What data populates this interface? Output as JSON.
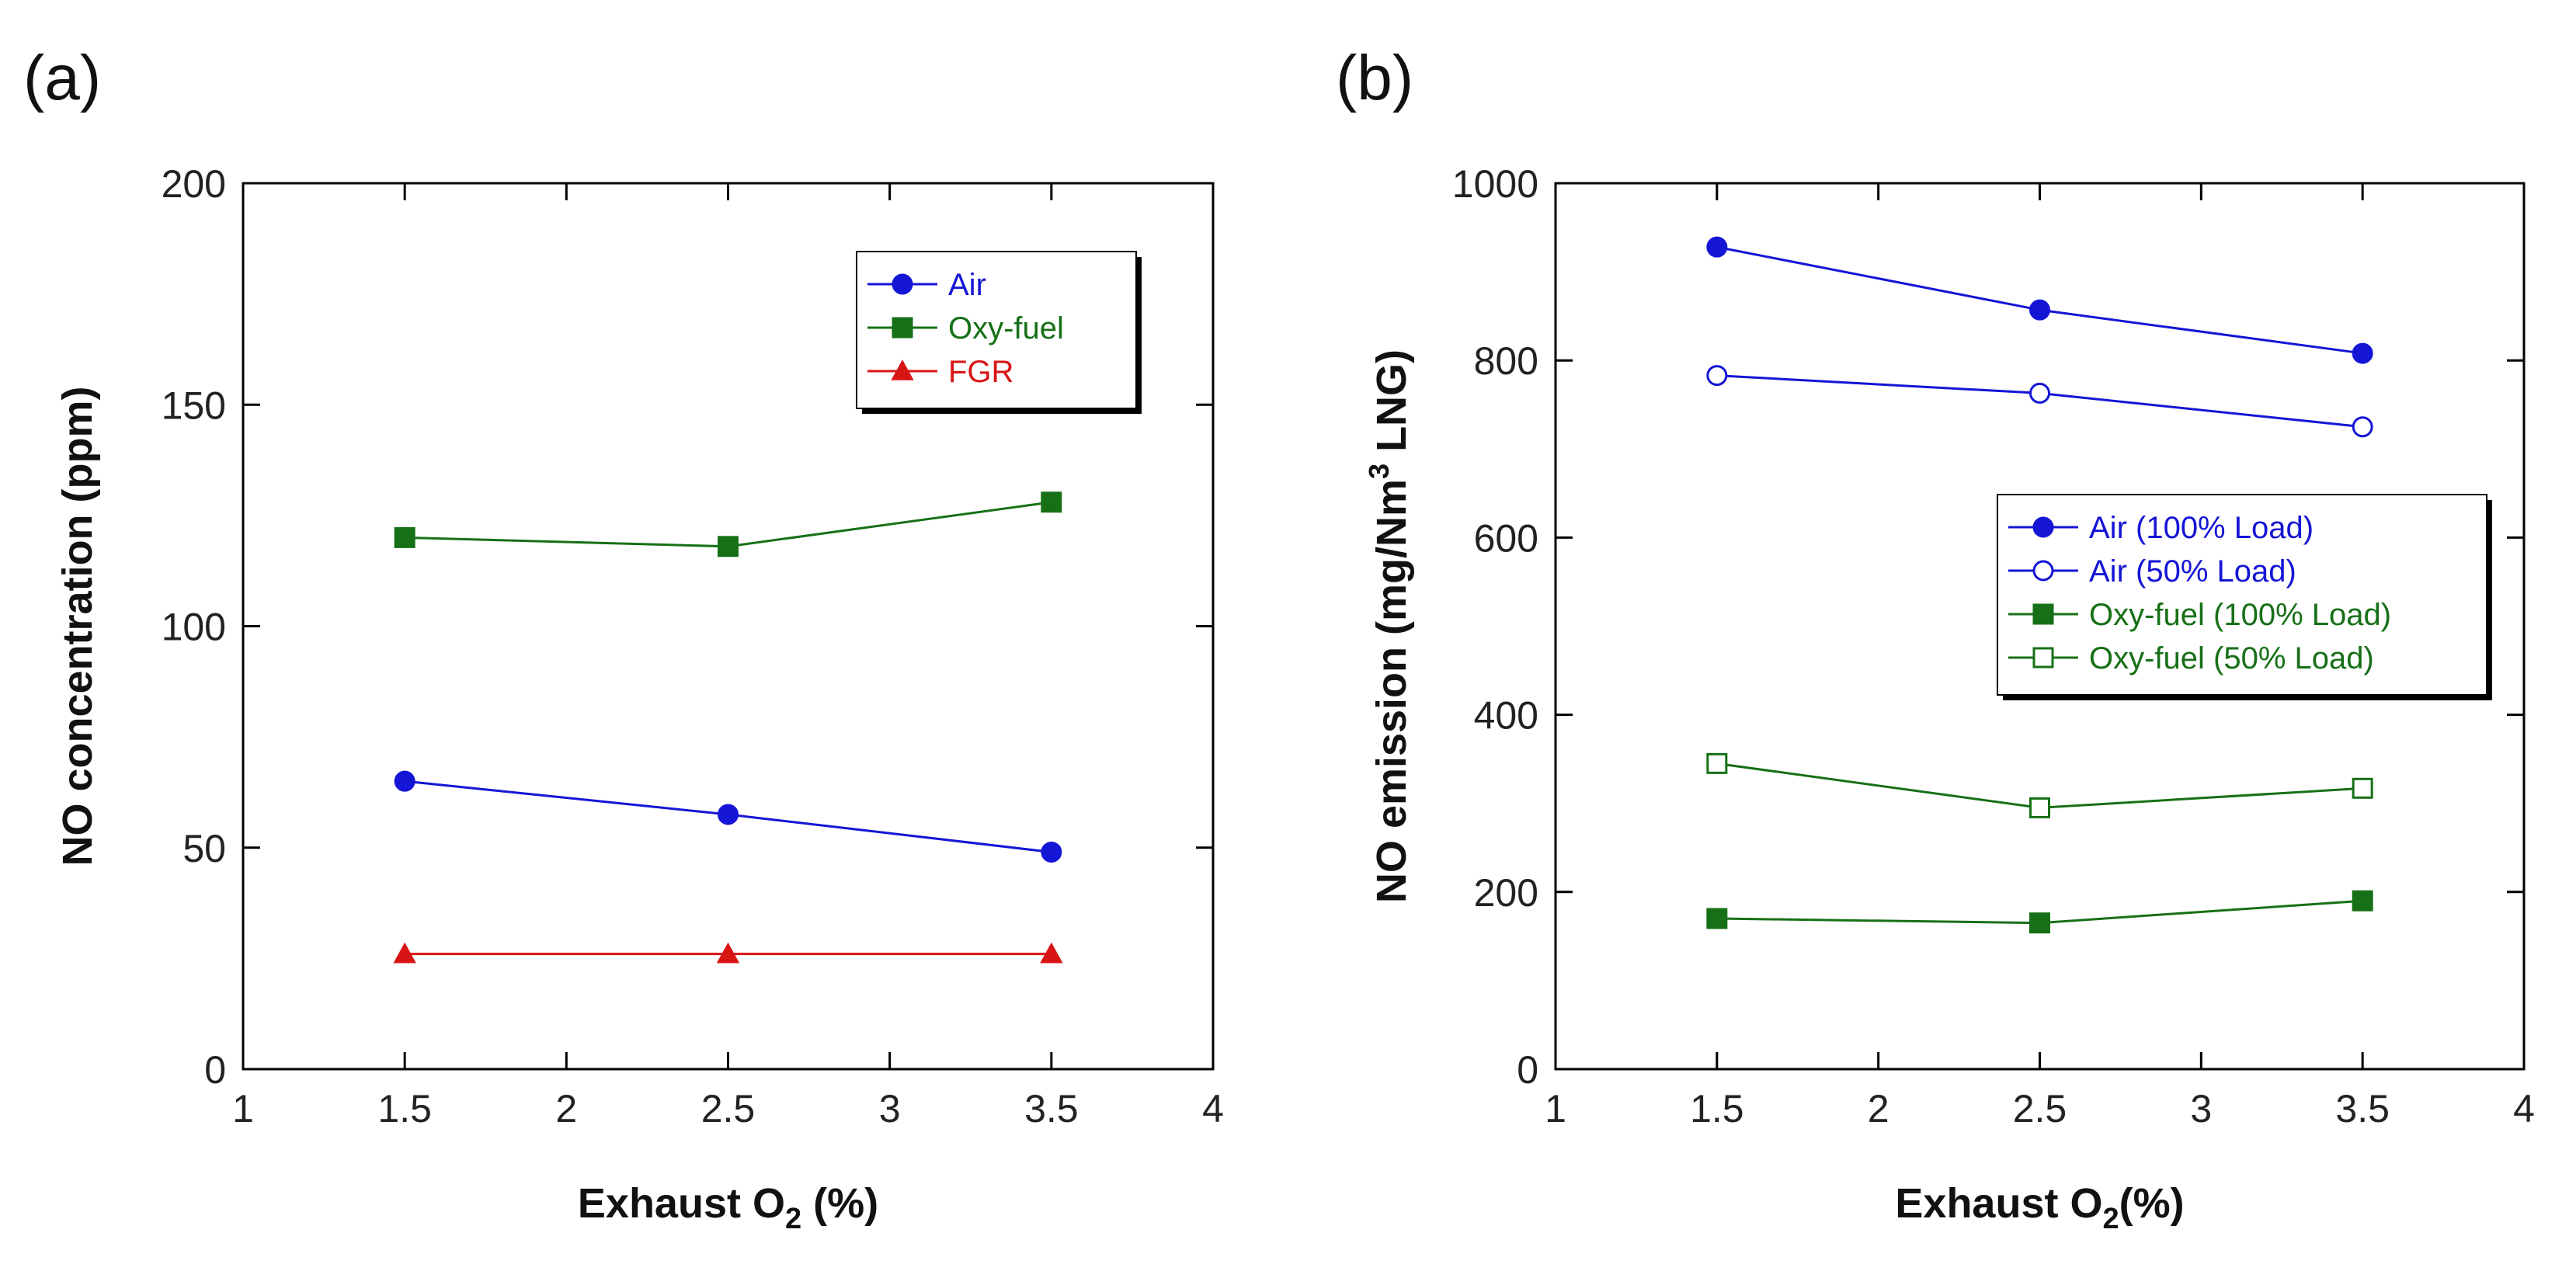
{
  "colors": {
    "air": "#1515d6",
    "oxy": "#177017",
    "fgr": "#d81515",
    "axis": "#000000"
  },
  "chart_data": [
    {
      "type": "line",
      "panel_label": "(a)",
      "xlabel": "Exhaust O",
      "xlabel_sub": "2",
      "xlabel_suffix": " (%)",
      "ylabel": "NO concentration (ppm)",
      "xlim": [
        1,
        4
      ],
      "ylim": [
        0,
        200
      ],
      "x_ticks": [
        "1",
        "1.5",
        "2",
        "2.5",
        "3",
        "3.5",
        "4"
      ],
      "y_ticks": [
        "0",
        "50",
        "100",
        "150",
        "200"
      ],
      "x_tick_values": [
        1,
        1.5,
        2,
        2.5,
        3,
        3.5,
        4
      ],
      "y_tick_values": [
        0,
        50,
        100,
        150,
        200
      ],
      "x": [
        1.5,
        2.5,
        3.5
      ],
      "legend_position": "top-right",
      "series": [
        {
          "name": "Air",
          "values": [
            65,
            57.5,
            49
          ],
          "color": "#1515d6",
          "marker": "circle",
          "fill": "filled"
        },
        {
          "name": "Oxy-fuel",
          "values": [
            120,
            118,
            128
          ],
          "color": "#177017",
          "marker": "square",
          "fill": "filled"
        },
        {
          "name": "FGR",
          "values": [
            26,
            26,
            26
          ],
          "color": "#d81515",
          "marker": "triangle",
          "fill": "filled"
        }
      ]
    },
    {
      "type": "line",
      "panel_label": "(b)",
      "xlabel": "Exhaust O",
      "xlabel_sub": "2",
      "xlabel_suffix": "(%)",
      "ylabel": "NO emission (mg/Nm",
      "ylabel_sup": "3",
      "ylabel_suffix": " LNG)",
      "xlim": [
        1,
        4
      ],
      "ylim": [
        0,
        1000
      ],
      "x_ticks": [
        "1",
        "1.5",
        "2",
        "2.5",
        "3",
        "3.5",
        "4"
      ],
      "y_ticks": [
        "0",
        "200",
        "400",
        "600",
        "800",
        "1000"
      ],
      "x_tick_values": [
        1,
        1.5,
        2,
        2.5,
        3,
        3.5,
        4
      ],
      "y_tick_values": [
        0,
        200,
        400,
        600,
        800,
        1000
      ],
      "x": [
        1.5,
        2.5,
        3.5
      ],
      "legend_position": "center-right",
      "series": [
        {
          "name": "Air (100% Load)",
          "values": [
            928,
            857,
            808
          ],
          "color": "#1515d6",
          "marker": "circle",
          "fill": "filled"
        },
        {
          "name": "Air (50% Load)",
          "values": [
            783,
            763,
            725
          ],
          "color": "#1515d6",
          "marker": "circle",
          "fill": "open"
        },
        {
          "name": "Oxy-fuel (100% Load)",
          "values": [
            170,
            165,
            190
          ],
          "color": "#177017",
          "marker": "square",
          "fill": "filled"
        },
        {
          "name": "Oxy-fuel (50% Load)",
          "values": [
            345,
            295,
            317
          ],
          "color": "#177017",
          "marker": "square",
          "fill": "open"
        }
      ]
    }
  ]
}
